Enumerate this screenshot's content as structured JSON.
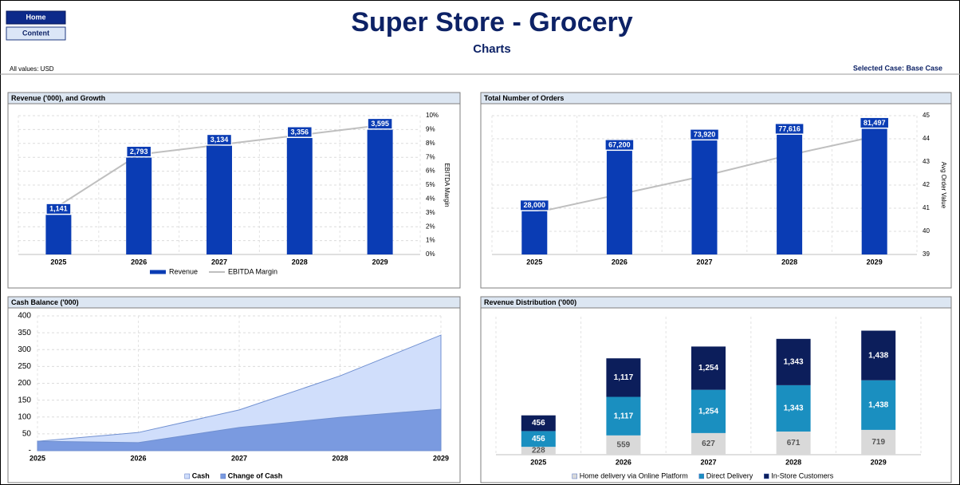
{
  "header": {
    "buttons": [
      "Home",
      "Content"
    ],
    "title": "Super Store - Grocery",
    "subtitle": "Charts",
    "units_note": "All values: USD",
    "case": "Selected Case: Base Case"
  },
  "chart_data": [
    {
      "type": "combo",
      "title": "Revenue ('000), and Growth",
      "categories": [
        "2025",
        "2026",
        "2027",
        "2028",
        "2029"
      ],
      "ylim": [
        0,
        4000
      ],
      "y2lim": [
        0,
        10
      ],
      "y2ticks": [
        {
          "value": 0,
          "label": "0%"
        },
        {
          "value": 1,
          "label": "1%"
        },
        {
          "value": 2,
          "label": "2%"
        },
        {
          "value": 3,
          "label": "3%"
        },
        {
          "value": 4,
          "label": "4%"
        },
        {
          "value": 5,
          "label": "5%"
        },
        {
          "value": 6,
          "label": "6%"
        },
        {
          "value": 7,
          "label": "7%"
        },
        {
          "value": 8,
          "label": "8%"
        },
        {
          "value": 9,
          "label": "9%"
        },
        {
          "value": 10,
          "label": "10%"
        }
      ],
      "y2label": "EBITDA Margin",
      "grid": true,
      "legend": "bottom",
      "series": [
        {
          "name": "Revenue",
          "type": "bar",
          "color": "#0a3cb4",
          "values": [
            1141,
            2793,
            3134,
            3356,
            3595
          ],
          "value_labels": [
            "1,141",
            "2,793",
            "3,134",
            "3,356",
            "3,595"
          ]
        },
        {
          "name": "EBITDA Margin",
          "type": "line",
          "axis": "y2",
          "color": "#bfbfbf",
          "values": [
            3.5,
            7.2,
            7.9,
            8.6,
            9.3
          ]
        }
      ]
    },
    {
      "type": "combo",
      "title": "Total Number of Orders",
      "categories": [
        "2025",
        "2026",
        "2027",
        "2028",
        "2029"
      ],
      "ylim": [
        0,
        90000
      ],
      "y2lim": [
        39,
        45
      ],
      "y2ticks": [
        39,
        40,
        41,
        42,
        43,
        44,
        45
      ],
      "y2label": "Avg Order Value",
      "grid": true,
      "series": [
        {
          "type": "bar",
          "color": "#0a3cb4",
          "values": [
            28000,
            67200,
            73920,
            77616,
            81497
          ],
          "value_labels": [
            "28,000",
            "67,200",
            "73,920",
            "77,616",
            "81,497"
          ]
        },
        {
          "type": "line",
          "axis": "y2",
          "color": "#bfbfbf",
          "values": [
            40.8,
            41.6,
            42.4,
            43.3,
            44.1
          ]
        }
      ]
    },
    {
      "type": "area",
      "title": "Cash Balance ('000)",
      "categories": [
        "2025",
        "2026",
        "2027",
        "2028",
        "2029"
      ],
      "ylim": [
        0,
        400
      ],
      "yticks": [
        {
          "value": 0,
          "label": "-"
        },
        50,
        100,
        150,
        200,
        250,
        300,
        350,
        400
      ],
      "grid": true,
      "legend": "bottom",
      "series": [
        {
          "name": "Cash",
          "color": "#d0defb",
          "values": [
            28,
            54,
            121,
            222,
            343
          ]
        },
        {
          "name": "Change of Cash",
          "color": "#7a9ae0",
          "values": [
            28,
            24,
            69,
            99,
            123
          ]
        }
      ]
    },
    {
      "type": "stacked_bar",
      "title": "Revenue Distribution ('000)",
      "categories": [
        "2025",
        "2026",
        "2027",
        "2028",
        "2029"
      ],
      "ylim": [
        0,
        4000
      ],
      "legend": "bottom",
      "series": [
        {
          "name": "Home delivery via Online Platform",
          "color": "#d9d9d9",
          "values": [
            228,
            559,
            627,
            671,
            719
          ]
        },
        {
          "name": "Direct Delivery",
          "color": "#1a8fc0",
          "values": [
            456,
            1117,
            1254,
            1343,
            1438
          ],
          "value_labels": [
            "456",
            "1,117",
            "1,254",
            "1,343",
            "1,438"
          ]
        },
        {
          "name": "In-Store Customers",
          "color": "#0c1e5b",
          "values": [
            456,
            1117,
            1254,
            1343,
            1438
          ],
          "value_labels": [
            "456",
            "1,117",
            "1,254",
            "1,343",
            "1,438"
          ]
        }
      ]
    }
  ]
}
